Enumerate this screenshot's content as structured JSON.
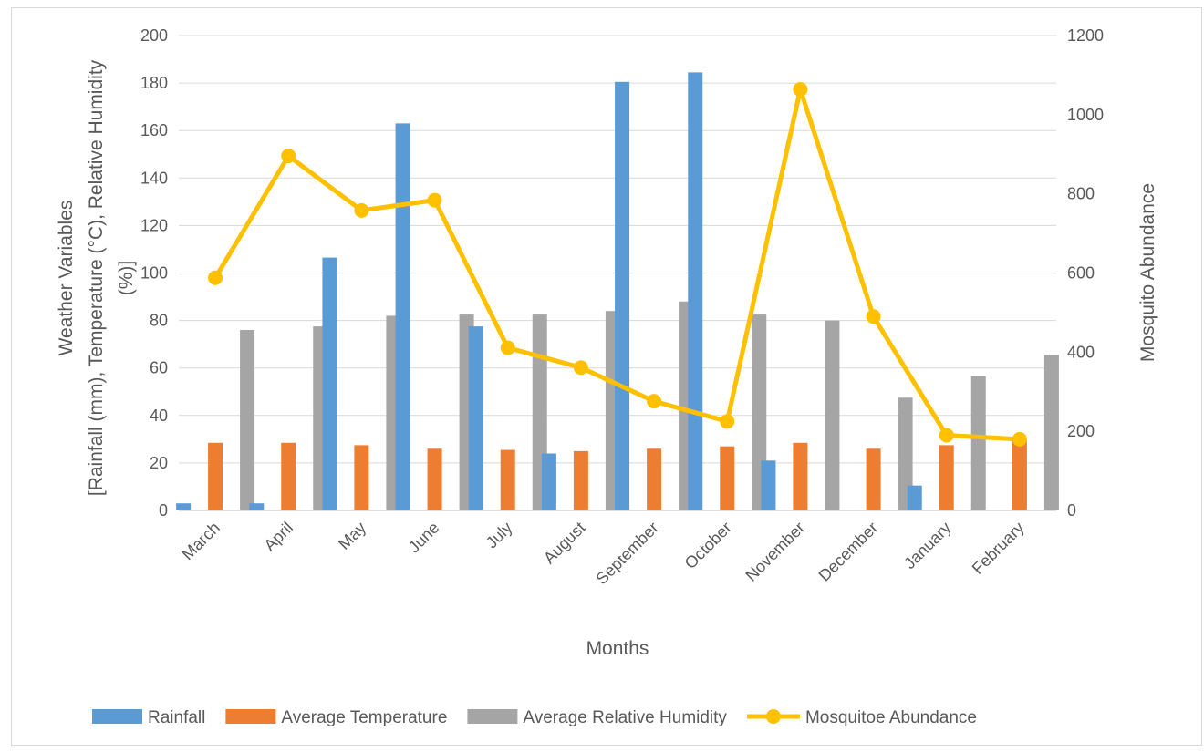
{
  "chart_data": {
    "type": "bar",
    "categories": [
      "March",
      "April",
      "May",
      "June",
      "July",
      "August",
      "September",
      "October",
      "November",
      "December",
      "January",
      "February"
    ],
    "series": [
      {
        "name": "Rainfall",
        "kind": "bar",
        "axis": "left",
        "color": "#5B9BD5",
        "values": [
          3,
          3,
          106.5,
          163,
          77.5,
          24,
          180.5,
          184.5,
          21,
          0,
          10.5,
          0
        ]
      },
      {
        "name": "Average Temperature",
        "kind": "bar",
        "axis": "left",
        "color": "#ED7D31",
        "values": [
          28.5,
          28.5,
          27.5,
          26,
          25.5,
          25,
          26,
          27,
          28.5,
          26,
          27.5,
          29.5
        ]
      },
      {
        "name": "Average Relative Humidity",
        "kind": "bar",
        "axis": "left",
        "color": "#A5A5A5",
        "values": [
          76,
          77.5,
          82,
          82.5,
          82.5,
          84,
          88,
          82.5,
          80,
          47.5,
          56.5,
          65.5
        ]
      },
      {
        "name": "Mosquitoe Abundance",
        "kind": "line",
        "axis": "right",
        "color": "#FFC000",
        "values": [
          588,
          896,
          758,
          784,
          411,
          361,
          276,
          225,
          1064,
          490,
          190,
          180
        ]
      }
    ],
    "y_left": {
      "label_lines": [
        "Weather Variables",
        "[Rainfall (mm), Temperature (°C), Relative Humidity",
        "(%)]"
      ],
      "ticks": [
        0,
        20,
        40,
        60,
        80,
        100,
        120,
        140,
        160,
        180,
        200
      ],
      "ylim": [
        0,
        200
      ]
    },
    "y_right": {
      "label": "Mosquito Abundance",
      "ticks": [
        0,
        200,
        400,
        600,
        800,
        1000,
        1200
      ],
      "ylim": [
        0,
        1200
      ]
    },
    "xlabel": "Months",
    "grid": true,
    "legend_position": "bottom"
  }
}
